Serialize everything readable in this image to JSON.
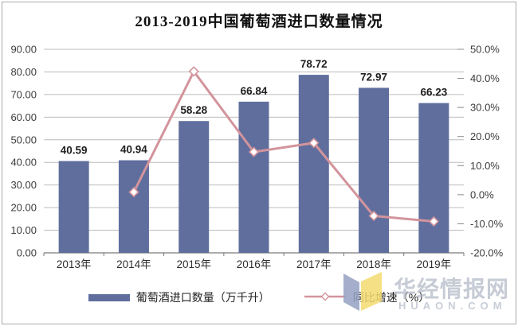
{
  "title": "2013-2019中国葡萄酒进口数量情况",
  "legend": {
    "items": [
      {
        "label": "葡萄酒进口数量（万千升）",
        "type": "bar"
      },
      {
        "label": "同比增速（%）",
        "type": "line"
      }
    ]
  },
  "watermark": {
    "text": "华经情报网",
    "subtext": "HUAON.COM",
    "text_color": "#aeb6c4",
    "logo_left_color": "#96a2c2",
    "logo_right_color": "#f4db70"
  },
  "chart_data": {
    "type": "bar",
    "subtype": "bar+line combo, dual axis",
    "title": "2013-2019中国葡萄酒进口数量情况",
    "categories": [
      "2013年",
      "2014年",
      "2015年",
      "2016年",
      "2017年",
      "2018年",
      "2019年"
    ],
    "series": [
      {
        "name": "葡萄酒进口数量（万千升）",
        "type": "bar",
        "axis": "left",
        "color": "#5f6e9d",
        "values": [
          40.59,
          40.94,
          58.28,
          66.84,
          78.72,
          72.97,
          66.23
        ],
        "value_labels": [
          "40.59",
          "40.94",
          "58.28",
          "66.84",
          "78.72",
          "72.97",
          "66.23"
        ]
      },
      {
        "name": "同比增速（%）",
        "type": "line",
        "axis": "right",
        "color": "#d3949c",
        "marker": "hollow-diamond",
        "values": [
          null,
          0.9,
          42.4,
          14.7,
          17.8,
          -7.3,
          -9.2
        ]
      }
    ],
    "left_axis": {
      "min": 0,
      "max": 90,
      "step": 10,
      "labels": [
        "90.00",
        "80.00",
        "70.00",
        "60.00",
        "50.00",
        "40.00",
        "30.00",
        "20.00",
        "10.00",
        "0.00"
      ]
    },
    "right_axis": {
      "min": -20,
      "max": 50,
      "step": 10,
      "labels": [
        "50.0%",
        "40.0%",
        "30.0%",
        "20.0%",
        "10.0%",
        "0.0%",
        "-10.0%",
        "-20.0%"
      ]
    },
    "grid": true,
    "legend_position": "bottom"
  },
  "colors": {
    "bar": "#5f6e9d",
    "line": "#d3949c",
    "gridline": "#bcbcbc",
    "axis_line": "#7a7a7a"
  }
}
